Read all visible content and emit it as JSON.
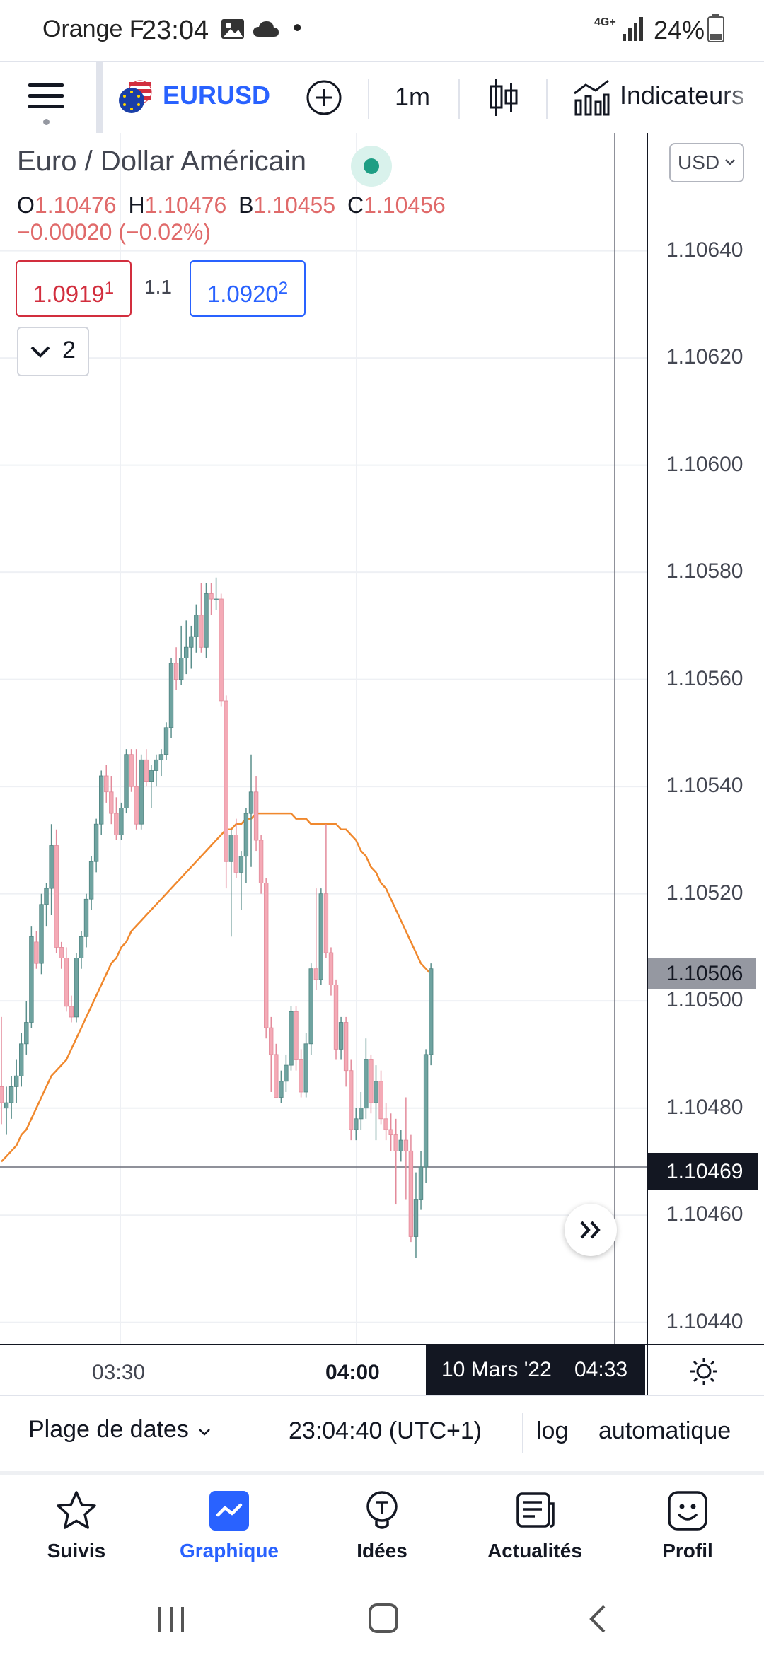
{
  "status_bar": {
    "carrier": "Orange F",
    "time": "23:04",
    "dot": "•",
    "network": "4G+",
    "battery": "24%"
  },
  "toolbar": {
    "symbol": "EURUSD",
    "interval": "1m",
    "indicators_label": "Indicateurs"
  },
  "legend": {
    "title": "Euro / Dollar Américain",
    "o_label": "O",
    "o_value": "1.10476",
    "h_label": "H",
    "h_value": "1.10476",
    "b_label": "B",
    "b_value": "1.10455",
    "c_label": "C",
    "c_value": "1.10456",
    "change": "−0.00020 (−0.02%)",
    "sell_price": "1.0919",
    "sell_sup": "1",
    "spread": "1.1",
    "buy_price": "1.0920",
    "buy_sup": "2",
    "collapse_count": "2"
  },
  "price_axis": {
    "currency": "USD",
    "labels": [
      "1.10640",
      "1.10620",
      "1.10600",
      "1.10580",
      "1.10560",
      "1.10540",
      "1.10520",
      "1.10500",
      "1.10480",
      "1.10460",
      "1.10440"
    ],
    "last_price_tag": "1.10506",
    "crosshair_price_tag": "1.10469"
  },
  "time_axis": {
    "labels": [
      "03:30",
      "04:00"
    ],
    "crosshair_date": "10 Mars '22",
    "crosshair_time": "04:33"
  },
  "date_bar": {
    "range_label": "Plage de dates",
    "clock": "23:04:40 (UTC+1)",
    "log_label": "log",
    "auto_label": "automatique"
  },
  "nav": {
    "items": [
      {
        "label": "Suivis",
        "icon": "star-icon"
      },
      {
        "label": "Graphique",
        "icon": "chart-icon"
      },
      {
        "label": "Idées",
        "icon": "lightbulb-icon"
      },
      {
        "label": "Actualités",
        "icon": "news-icon"
      },
      {
        "label": "Profil",
        "icon": "smiley-icon"
      }
    ]
  },
  "colors": {
    "bull": "#6fa3a0",
    "bear": "#f4aab6",
    "ma": "#f0882d",
    "accent": "#2962ff",
    "sell": "#d22e3e",
    "buy": "#2962ff"
  },
  "chart_data": {
    "type": "candlestick",
    "symbol": "EURUSD",
    "interval": "1m",
    "y_range": [
      1.10436,
      1.10662
    ],
    "x_ticks": [
      "03:30",
      "04:00"
    ],
    "crosshair": {
      "date": "10 Mars '22",
      "time": "04:33",
      "price": 1.10469
    },
    "last_price": 1.10506,
    "candles": [
      [
        1.10484,
        1.10497,
        1.10477,
        1.10481
      ],
      [
        1.1048,
        1.10484,
        1.10475,
        1.10481
      ],
      [
        1.10481,
        1.10486,
        1.10478,
        1.10484
      ],
      [
        1.10484,
        1.10489,
        1.10481,
        1.10486
      ],
      [
        1.10486,
        1.10494,
        1.10484,
        1.10492
      ],
      [
        1.10492,
        1.105,
        1.1049,
        1.10496
      ],
      [
        1.10496,
        1.10514,
        1.10495,
        1.10512
      ],
      [
        1.10511,
        1.10513,
        1.10506,
        1.10507
      ],
      [
        1.10507,
        1.1052,
        1.10505,
        1.10518
      ],
      [
        1.10518,
        1.10522,
        1.10514,
        1.10521
      ],
      [
        1.10521,
        1.10533,
        1.10516,
        1.10529
      ],
      [
        1.10529,
        1.10532,
        1.10509,
        1.1051
      ],
      [
        1.1051,
        1.10511,
        1.10506,
        1.10508
      ],
      [
        1.10508,
        1.1051,
        1.10498,
        1.10499
      ],
      [
        1.10499,
        1.10501,
        1.10496,
        1.10497
      ],
      [
        1.10497,
        1.10509,
        1.10496,
        1.10508
      ],
      [
        1.10508,
        1.10513,
        1.10506,
        1.10512
      ],
      [
        1.10512,
        1.1052,
        1.1051,
        1.10519
      ],
      [
        1.10519,
        1.10527,
        1.10517,
        1.10526
      ],
      [
        1.10526,
        1.10534,
        1.10524,
        1.10533
      ],
      [
        1.10533,
        1.10543,
        1.10531,
        1.10542
      ],
      [
        1.10542,
        1.10544,
        1.10537,
        1.10539
      ],
      [
        1.10539,
        1.10542,
        1.10533,
        1.10535
      ],
      [
        1.10535,
        1.10538,
        1.1053,
        1.10531
      ],
      [
        1.10531,
        1.10537,
        1.1053,
        1.10536
      ],
      [
        1.10536,
        1.10547,
        1.10535,
        1.10546
      ],
      [
        1.10546,
        1.10547,
        1.10539,
        1.1054
      ],
      [
        1.1054,
        1.10547,
        1.10532,
        1.10533
      ],
      [
        1.10533,
        1.10546,
        1.10532,
        1.10545
      ],
      [
        1.10545,
        1.10547,
        1.1054,
        1.10541
      ],
      [
        1.10541,
        1.10544,
        1.10536,
        1.10543
      ],
      [
        1.10543,
        1.10546,
        1.1054,
        1.10545
      ],
      [
        1.10545,
        1.10547,
        1.10542,
        1.10546
      ],
      [
        1.10546,
        1.10552,
        1.10545,
        1.10551
      ],
      [
        1.10551,
        1.10564,
        1.10549,
        1.10563
      ],
      [
        1.10563,
        1.10566,
        1.10558,
        1.1056
      ],
      [
        1.1056,
        1.1057,
        1.10559,
        1.10564
      ],
      [
        1.10564,
        1.10571,
        1.10561,
        1.10566
      ],
      [
        1.10566,
        1.1057,
        1.10562,
        1.10568
      ],
      [
        1.10568,
        1.10574,
        1.10565,
        1.10572
      ],
      [
        1.10572,
        1.10578,
        1.10565,
        1.10566
      ],
      [
        1.10566,
        1.10578,
        1.10564,
        1.10576
      ],
      [
        1.10576,
        1.10578,
        1.10572,
        1.10575
      ],
      [
        1.10575,
        1.10579,
        1.10573,
        1.10575
      ],
      [
        1.10575,
        1.10576,
        1.10555,
        1.10556
      ],
      [
        1.10556,
        1.10557,
        1.10521,
        1.10526
      ],
      [
        1.10526,
        1.10532,
        1.10512,
        1.10531
      ],
      [
        1.10531,
        1.10534,
        1.10523,
        1.10524
      ],
      [
        1.10524,
        1.10528,
        1.10517,
        1.10527
      ],
      [
        1.10527,
        1.10536,
        1.10522,
        1.10535
      ],
      [
        1.10535,
        1.10546,
        1.10525,
        1.10539
      ],
      [
        1.10539,
        1.10542,
        1.10528,
        1.1053
      ],
      [
        1.1053,
        1.10531,
        1.1052,
        1.10522
      ],
      [
        1.10522,
        1.10523,
        1.10493,
        1.10495
      ],
      [
        1.10495,
        1.10497,
        1.10483,
        1.1049
      ],
      [
        1.1049,
        1.10492,
        1.10482,
        1.10482
      ],
      [
        1.10482,
        1.10487,
        1.10481,
        1.10485
      ],
      [
        1.10485,
        1.1049,
        1.10483,
        1.10488
      ],
      [
        1.10488,
        1.10499,
        1.10487,
        1.10498
      ],
      [
        1.10498,
        1.10499,
        1.10487,
        1.10489
      ],
      [
        1.10489,
        1.10491,
        1.10482,
        1.10483
      ],
      [
        1.10483,
        1.10494,
        1.10482,
        1.10492
      ],
      [
        1.10492,
        1.10507,
        1.1049,
        1.10506
      ],
      [
        1.10506,
        1.10521,
        1.10502,
        1.10504
      ],
      [
        1.10504,
        1.10521,
        1.10503,
        1.1052
      ],
      [
        1.1052,
        1.10533,
        1.10508,
        1.10509
      ],
      [
        1.10509,
        1.1051,
        1.10501,
        1.10503
      ],
      [
        1.10503,
        1.10504,
        1.10489,
        1.10491
      ],
      [
        1.10491,
        1.10497,
        1.10489,
        1.10496
      ],
      [
        1.10496,
        1.10497,
        1.10484,
        1.10487
      ],
      [
        1.10487,
        1.10489,
        1.10474,
        1.10476
      ],
      [
        1.10476,
        1.1048,
        1.10474,
        1.10478
      ],
      [
        1.10478,
        1.10483,
        1.10476,
        1.1048
      ],
      [
        1.1048,
        1.10493,
        1.10478,
        1.10489
      ],
      [
        1.10489,
        1.1049,
        1.10479,
        1.10481
      ],
      [
        1.10481,
        1.10488,
        1.10474,
        1.10485
      ],
      [
        1.10485,
        1.10487,
        1.10477,
        1.10478
      ],
      [
        1.10478,
        1.10481,
        1.10474,
        1.10476
      ],
      [
        1.10476,
        1.10479,
        1.10472,
        1.10475
      ],
      [
        1.10475,
        1.10478,
        1.10462,
        1.10472
      ],
      [
        1.10472,
        1.10476,
        1.1047,
        1.10474
      ],
      [
        1.10474,
        1.10482,
        1.10463,
        1.10472
      ],
      [
        1.10472,
        1.10475,
        1.10455,
        1.10456
      ],
      [
        1.10456,
        1.10468,
        1.10452,
        1.10463
      ],
      [
        1.10463,
        1.10472,
        1.10461,
        1.10469
      ],
      [
        1.10469,
        1.10491,
        1.10466,
        1.1049
      ],
      [
        1.1049,
        1.10507,
        1.10488,
        1.10506
      ]
    ],
    "moving_average": [
      1.1047,
      1.10471,
      1.10472,
      1.10473,
      1.10475,
      1.10476,
      1.10478,
      1.1048,
      1.10482,
      1.10484,
      1.10486,
      1.10487,
      1.10488,
      1.10489,
      1.10491,
      1.10493,
      1.10495,
      1.10497,
      1.10499,
      1.10501,
      1.10503,
      1.10505,
      1.10507,
      1.10508,
      1.1051,
      1.10511,
      1.10513,
      1.10514,
      1.10515,
      1.10516,
      1.10517,
      1.10518,
      1.10519,
      1.1052,
      1.10521,
      1.10522,
      1.10523,
      1.10524,
      1.10525,
      1.10526,
      1.10527,
      1.10528,
      1.10529,
      1.1053,
      1.10531,
      1.10532,
      1.10532,
      1.10533,
      1.10533,
      1.10534,
      1.10534,
      1.10535,
      1.10535,
      1.10535,
      1.10535,
      1.10535,
      1.10535,
      1.10535,
      1.10535,
      1.10534,
      1.10534,
      1.10534,
      1.10533,
      1.10533,
      1.10533,
      1.10533,
      1.10533,
      1.10533,
      1.10532,
      1.10532,
      1.10531,
      1.1053,
      1.10528,
      1.10527,
      1.10525,
      1.10524,
      1.10522,
      1.10521,
      1.10519,
      1.10517,
      1.10515,
      1.10513,
      1.10511,
      1.10509,
      1.10507,
      1.10506,
      1.10505
    ]
  }
}
